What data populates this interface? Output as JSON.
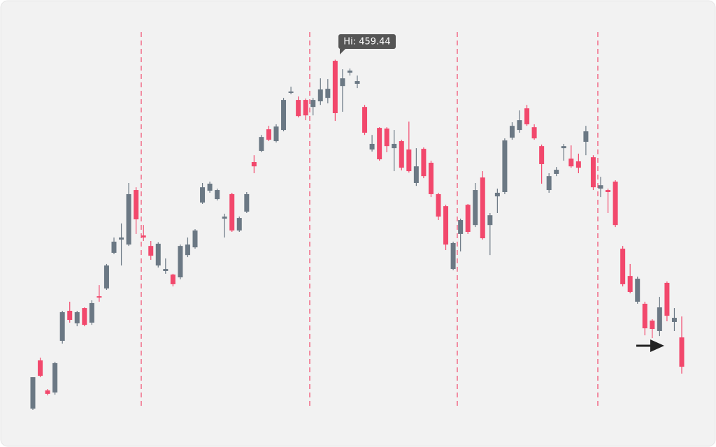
{
  "chart_data": {
    "type": "candlestick",
    "annotation": "Hi: 459.44",
    "up_color": "#6b7884",
    "down_color": "#f2486c",
    "ylim": [
      250,
      480
    ],
    "open": [
      256.1,
      284.2,
      266.7,
      265.5,
      295.6,
      313.1,
      305.8,
      314.7,
      306.2,
      321.6,
      326.1,
      346.9,
      354.6,
      351.7,
      383.5,
      357.0,
      350.9,
      339.5,
      336.3,
      334.2,
      332.6,
      345.6,
      350.1,
      376.2,
      383.1,
      378.2,
      366.8,
      381.1,
      359.9,
      370.9,
      399.8,
      406.3,
      418.9,
      412.0,
      418.5,
      440.1,
      436.0,
      436.0,
      431.9,
      435.2,
      437.2,
      458.8,
      444.1,
      451.9,
      445.4,
      431.9,
      407.1,
      419.7,
      419.3,
      407.9,
      412.0,
      407.1,
      387.6,
      407.5,
      399.4,
      381.1,
      374.1,
      337.5,
      357.9,
      374.9,
      363.1,
      390.8,
      363.1,
      379.8,
      382.3,
      414.0,
      418.5,
      431.1,
      420.1,
      409.1,
      383.5,
      392.9,
      407.9,
      401.8,
      400.2,
      411.6,
      402.6,
      384.3,
      383.5,
      388.4,
      349.3,
      333.4,
      318.4,
      317.2,
      307.4,
      301.3,
      329.4,
      306.6,
      297.6
    ],
    "high": [
      274.4,
      285.8,
      267.5,
      283.4,
      313.1,
      318.4,
      313.1,
      315.1,
      319.2,
      328.1,
      340.4,
      355.8,
      364.0,
      387.6,
      385.1,
      363.1,
      353.8,
      353.0,
      343.6,
      334.7,
      351.7,
      355.8,
      360.7,
      387.6,
      388.4,
      384.3,
      369.7,
      381.9,
      368.0,
      382.3,
      403.8,
      415.6,
      420.9,
      421.8,
      437.2,
      443.7,
      438.0,
      436.8,
      437.2,
      448.6,
      448.2,
      459.44,
      453.9,
      454.3,
      450.2,
      433.1,
      415.6,
      420.1,
      420.1,
      418.5,
      412.8,
      423.4,
      407.9,
      408.3,
      400.6,
      381.9,
      374.9,
      353.4,
      366.8,
      375.4,
      387.6,
      394.5,
      370.1,
      384.3,
      413.6,
      423.0,
      429.9,
      433.1,
      421.8,
      410.0,
      393.3,
      396.9,
      410.4,
      409.5,
      404.7,
      420.9,
      403.8,
      391.2,
      384.3,
      389.2,
      350.9,
      340.4,
      333.0,
      318.4,
      308.2,
      321.2,
      330.2,
      314.7,
      309.8
    ],
    "low": [
      255.3,
      274.4,
      263.8,
      264.2,
      294.0,
      306.2,
      304.1,
      304.1,
      304.9,
      318.4,
      325.3,
      346.1,
      339.5,
      350.9,
      357.9,
      353.8,
      342.8,
      338.3,
      334.7,
      327.3,
      331.4,
      344.4,
      349.3,
      375.4,
      381.9,
      377.4,
      355.8,
      359.1,
      359.1,
      370.1,
      393.3,
      405.5,
      412.0,
      411.2,
      417.7,
      439.3,
      425.8,
      424.2,
      427.0,
      433.1,
      434.0,
      423.8,
      429.1,
      450.2,
      442.9,
      415.6,
      405.9,
      400.6,
      405.5,
      394.5,
      394.9,
      393.7,
      385.9,
      390.4,
      379.4,
      366.0,
      348.5,
      336.7,
      347.7,
      357.9,
      361.9,
      354.6,
      345.6,
      370.1,
      381.1,
      412.8,
      416.9,
      420.9,
      412.8,
      387.2,
      381.9,
      391.6,
      400.6,
      396.5,
      393.3,
      403.8,
      383.5,
      379.4,
      370.1,
      361.9,
      327.3,
      323.3,
      317.2,
      298.8,
      297.2,
      298.4,
      307.0,
      301.3,
      276.5
    ],
    "close": [
      274.4,
      275.2,
      264.7,
      282.6,
      312.3,
      307.8,
      312.3,
      304.9,
      317.6,
      320.8,
      339.5,
      353.4,
      355.8,
      381.1,
      366.4,
      355.8,
      345.2,
      352.2,
      337.5,
      328.6,
      350.9,
      351.7,
      359.9,
      385.1,
      387.2,
      383.5,
      368.0,
      359.9,
      367.2,
      381.1,
      397.3,
      414.4,
      412.8,
      420.5,
      436.0,
      440.9,
      426.6,
      427.0,
      436.0,
      442.1,
      442.5,
      428.3,
      448.6,
      453.1,
      447.0,
      416.9,
      410.4,
      401.4,
      409.1,
      410.4,
      396.5,
      394.5,
      397.3,
      391.6,
      381.1,
      368.0,
      351.7,
      352.6,
      366.0,
      359.1,
      383.5,
      355.4,
      368.8,
      381.9,
      412.4,
      420.9,
      424.2,
      421.8,
      413.6,
      398.6,
      391.6,
      395.3,
      409.1,
      397.3,
      396.5,
      417.7,
      385.1,
      386.3,
      382.3,
      363.1,
      328.6,
      324.1,
      331.8,
      302.9,
      302.5,
      315.1,
      310.2,
      309.0,
      280.5
    ]
  }
}
